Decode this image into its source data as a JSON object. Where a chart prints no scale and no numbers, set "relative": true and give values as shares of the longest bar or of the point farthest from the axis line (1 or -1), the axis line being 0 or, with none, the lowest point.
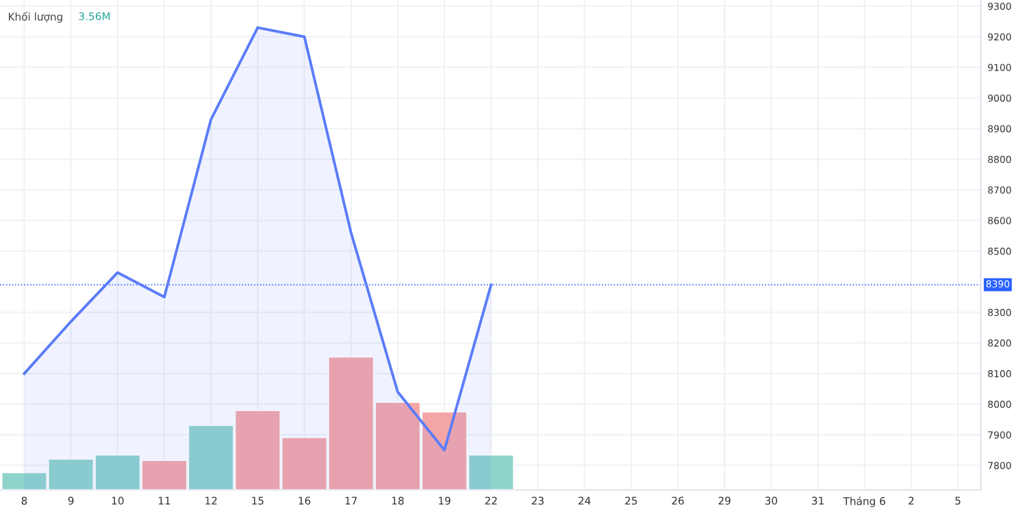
{
  "chart_data": [
    {
      "type": "area",
      "categories": [
        "8",
        "9",
        "10",
        "11",
        "12",
        "15",
        "16",
        "17",
        "18",
        "19",
        "22",
        "23",
        "24",
        "25",
        "26",
        "29",
        "30",
        "31",
        "Tháng 6",
        "2",
        "5"
      ],
      "series": [
        {
          "color": "#5b7cfa",
          "values": [
            8100,
            8270,
            8430,
            8350,
            8930,
            9230,
            9200,
            8560,
            8040,
            7850,
            8390,
            null,
            null,
            null,
            null,
            null,
            null,
            null,
            null,
            null,
            null
          ]
        }
      ],
      "ylim": [
        7720,
        9320
      ],
      "yticks": [
        7800,
        7900,
        8000,
        8100,
        8200,
        8300,
        8500,
        8600,
        8700,
        8800,
        8900,
        9000,
        9100,
        9200,
        9300
      ],
      "grid": true,
      "legend": false,
      "line_style": "solid",
      "marker": "none",
      "ref_lines": [
        {
          "axis": "y",
          "value": 8390,
          "label": "8390",
          "color": "#2962ff",
          "line_style": "dotted"
        }
      ],
      "annotations": [
        "Khối lượng",
        "3.56M"
      ]
    },
    {
      "type": "bar",
      "relative": true,
      "tick_labels": false,
      "categories": [
        null,
        null,
        null,
        null,
        null,
        null,
        null,
        null,
        null,
        null,
        null,
        null,
        null,
        null,
        null,
        null,
        null,
        null,
        null,
        null,
        null
      ],
      "values": [
        0.13,
        0.23,
        0.26,
        0.22,
        0.48,
        0.59,
        0.39,
        1,
        0.65,
        0.58,
        0.26,
        null,
        null,
        null,
        null,
        null,
        null,
        null,
        null,
        null,
        null
      ],
      "colors": [
        "#8fd3cb",
        "#8fd3cb",
        "#8fd3cb",
        "#f4a6a6",
        "#8fd3cb",
        "#f4a6a6",
        "#f4a6a6",
        "#f4a6a6",
        "#f4a6a6",
        "#f4a6a6",
        "#8fd3cb",
        null,
        null,
        null,
        null,
        null,
        null,
        null,
        null,
        null,
        null
      ]
    }
  ]
}
